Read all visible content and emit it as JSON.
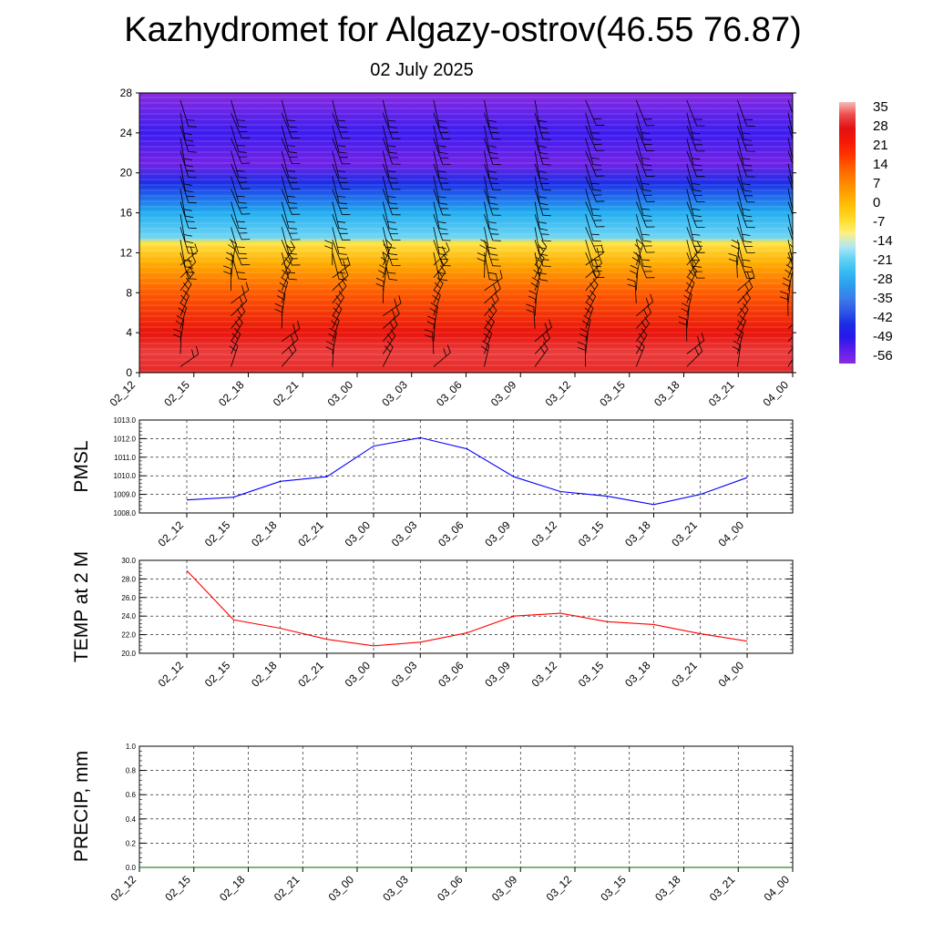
{
  "header": {
    "title": "Kazhydromet for Algazy-ostrov(46.55 76.87)",
    "subtitle": "02 July 2025"
  },
  "time_labels": [
    "02_12",
    "02_15",
    "02_18",
    "02_21",
    "03_00",
    "03_03",
    "03_06",
    "03_09",
    "03_12",
    "03_15",
    "03_18",
    "03_21",
    "04_00"
  ],
  "chart_data": [
    {
      "type": "heatmap",
      "description": "temperature cross-section with wind barbs",
      "x": [
        "02_12",
        "02_15",
        "02_18",
        "02_21",
        "03_00",
        "03_03",
        "03_06",
        "03_09",
        "03_12",
        "03_15",
        "03_18",
        "03_21",
        "04_00"
      ],
      "y_ticks": [
        0,
        4,
        8,
        12,
        16,
        20,
        24,
        28
      ],
      "ylim": [
        0,
        28
      ],
      "colorbar": {
        "labels": [
          "35",
          "28",
          "21",
          "14",
          "7",
          "0",
          "-7",
          "-14",
          "-21",
          "-28",
          "-35",
          "-42",
          "-49",
          "-56"
        ],
        "range": [
          -60,
          38
        ]
      },
      "profile": [
        {
          "h": 0,
          "t": 30
        },
        {
          "h": 2,
          "t": 32
        },
        {
          "h": 4,
          "t": 26
        },
        {
          "h": 8,
          "t": 14
        },
        {
          "h": 11,
          "t": 2
        },
        {
          "h": 13,
          "t": -8
        },
        {
          "h": 13.5,
          "t": -20
        },
        {
          "h": 16,
          "t": -28
        },
        {
          "h": 19,
          "t": -45
        },
        {
          "h": 21,
          "t": -57
        },
        {
          "h": 24,
          "t": -52
        },
        {
          "h": 28,
          "t": -60
        }
      ]
    },
    {
      "type": "line",
      "ylabel": "PMSL",
      "ylim": [
        1008.0,
        1013.0
      ],
      "y_ticks": [
        "1008.0",
        "1009.0",
        "1010.0",
        "1011.0",
        "1012.0",
        "1013.0"
      ],
      "x": [
        "02_12",
        "02_15",
        "02_18",
        "02_21",
        "03_00",
        "03_03",
        "03_06",
        "03_09",
        "03_12",
        "03_15",
        "03_18",
        "03_21",
        "04_00"
      ],
      "series": [
        {
          "color": "#0000ff",
          "values": [
            1008.7,
            1008.85,
            1009.7,
            1009.95,
            1011.6,
            1012.05,
            1011.45,
            1009.95,
            1009.15,
            1008.9,
            1008.45,
            1009.0,
            1009.9
          ]
        }
      ]
    },
    {
      "type": "line",
      "ylabel": "TEMP at 2 M",
      "ylim": [
        20.0,
        30.0
      ],
      "y_ticks": [
        "20.0",
        "22.0",
        "24.0",
        "26.0",
        "28.0",
        "30.0"
      ],
      "x": [
        "02_12",
        "02_15",
        "02_18",
        "02_21",
        "03_00",
        "03_03",
        "03_06",
        "03_09",
        "03_12",
        "03_15",
        "03_18",
        "03_21",
        "04_00"
      ],
      "series": [
        {
          "color": "#ff0000",
          "values": [
            28.9,
            23.6,
            22.7,
            21.5,
            20.8,
            21.2,
            22.2,
            24.0,
            24.3,
            23.4,
            23.1,
            22.1,
            21.3
          ]
        }
      ]
    },
    {
      "type": "line",
      "ylabel": "PRECIP, mm",
      "ylim": [
        0.0,
        1.0
      ],
      "y_ticks": [
        "0.0",
        "0.2",
        "0.4",
        "0.6",
        "0.8",
        "1.0"
      ],
      "x": [
        "02_12",
        "02_15",
        "02_18",
        "02_21",
        "03_00",
        "03_03",
        "03_06",
        "03_09",
        "03_12",
        "03_15",
        "03_18",
        "03_21",
        "04_00"
      ],
      "series": [
        {
          "color": "#006400",
          "values": [
            0,
            0,
            0,
            0,
            0,
            0,
            0,
            0,
            0,
            0,
            0,
            0,
            0
          ]
        }
      ]
    }
  ]
}
